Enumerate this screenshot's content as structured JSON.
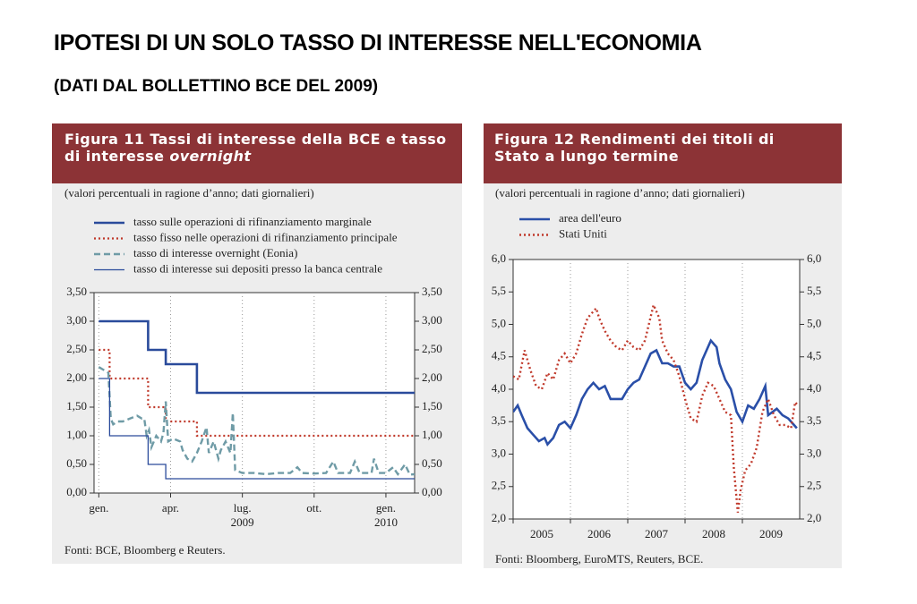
{
  "header": {
    "title": "IPOTESI DI UN SOLO TASSO DI INTERESSE NELL'ECONOMIA",
    "subtitle": "(DATI DAL BOLLETTINO BCE DEL 2009)"
  },
  "chart_data": [
    {
      "type": "line",
      "title": "Figura 11 Tassi di interesse della BCE e tasso di interesse",
      "title_italic": "overnight",
      "subtitle": "(valori percentuali in ragione d’anno; dati giornalieri)",
      "source": "Fonti: BCE, Bloomberg e Reuters.",
      "xlim": [
        -0.2,
        13.2
      ],
      "ylim": [
        0,
        3.5
      ],
      "xticks": [
        {
          "value": 0,
          "label": "gen."
        },
        {
          "value": 3,
          "label": "apr."
        },
        {
          "value": 6,
          "label": "lug."
        },
        {
          "value": 9,
          "label": "ott."
        },
        {
          "value": 12,
          "label": "gen."
        }
      ],
      "year_labels": [
        {
          "value": 6,
          "label": "2009"
        },
        {
          "value": 12,
          "label": "2010"
        }
      ],
      "yticks": [
        {
          "value": 0,
          "label": "0,00"
        },
        {
          "value": 0.5,
          "label": "0,50"
        },
        {
          "value": 1,
          "label": "1,00"
        },
        {
          "value": 1.5,
          "label": "1,50"
        },
        {
          "value": 2,
          "label": "2,00"
        },
        {
          "value": 2.5,
          "label": "2,50"
        },
        {
          "value": 3,
          "label": "3,00"
        },
        {
          "value": 3.5,
          "label": "3,50"
        }
      ],
      "right_axis": true,
      "xtick_labels_centered": false,
      "grid": "x",
      "series": [
        {
          "name": "tasso sulle operazioni di rifinanziamento marginale",
          "color": "#2a4b9b",
          "dash": "solid",
          "width": 2.6,
          "x": [
            0,
            2.06,
            2.06,
            2.8,
            2.8,
            4.1,
            4.1,
            13.2
          ],
          "values": [
            3,
            3,
            2.5,
            2.5,
            2.25,
            2.25,
            1.75,
            1.75
          ]
        },
        {
          "name": "tasso fisso nelle operazioni di rifinanziamento principale",
          "color": "#c0392b",
          "dash": "dotted",
          "width": 2.2,
          "x": [
            0,
            0.45,
            0.45,
            2.06,
            2.06,
            2.8,
            2.8,
            4.1,
            4.1,
            13.2
          ],
          "values": [
            2.5,
            2.5,
            2,
            2,
            1.5,
            1.5,
            1.25,
            1.25,
            1,
            1
          ]
        },
        {
          "name": "tasso di interesse overnight (Eonia)",
          "color": "#6f9ba6",
          "dash": "dashed",
          "width": 2.4,
          "x": [
            0,
            0.2,
            0.4,
            0.5,
            0.6,
            0.8,
            1.0,
            1.3,
            1.6,
            1.8,
            1.9,
            2.0,
            2.1,
            2.2,
            2.4,
            2.6,
            2.7,
            2.8,
            2.9,
            3.1,
            3.4,
            3.5,
            3.7,
            3.9,
            4.1,
            4.3,
            4.5,
            4.6,
            4.8,
            5.0,
            5.1,
            5.3,
            5.5,
            5.6,
            5.7,
            6.0,
            6.5,
            7.0,
            7.5,
            8.0,
            8.3,
            8.5,
            9.0,
            9.5,
            9.8,
            10.0,
            10.5,
            10.7,
            10.9,
            11.4,
            11.5,
            11.7,
            12.0,
            12.3,
            12.5,
            12.8,
            13.0,
            13.2
          ],
          "values": [
            2.2,
            2.15,
            2.1,
            1.3,
            1.2,
            1.25,
            1.25,
            1.3,
            1.35,
            1.3,
            1.3,
            1.0,
            1.1,
            0.8,
            1.0,
            0.9,
            1.05,
            1.6,
            0.9,
            0.95,
            0.9,
            0.75,
            0.6,
            0.55,
            0.7,
            0.9,
            1.15,
            0.7,
            0.9,
            0.6,
            0.75,
            0.9,
            0.7,
            1.4,
            0.4,
            0.35,
            0.35,
            0.33,
            0.35,
            0.35,
            0.45,
            0.35,
            0.34,
            0.35,
            0.55,
            0.35,
            0.35,
            0.55,
            0.35,
            0.35,
            0.6,
            0.35,
            0.35,
            0.45,
            0.33,
            0.5,
            0.32,
            0.33
          ]
        },
        {
          "name": "tasso di interesse sui depositi presso la banca centrale",
          "color": "#2a4b9b",
          "dash": "solid",
          "width": 1.3,
          "x": [
            0,
            0.45,
            0.45,
            2.06,
            2.06,
            2.8,
            2.8,
            13.2
          ],
          "values": [
            2,
            2,
            1,
            1,
            0.5,
            0.5,
            0.25,
            0.25
          ]
        }
      ]
    },
    {
      "type": "line",
      "title": "Figura 12 Rendimenti dei titoli di Stato a lungo termine",
      "subtitle": "(valori percentuali in ragione d’anno; dati giornalieri)",
      "source": "Fonti: Bloomberg, EuroMTS, Reuters, BCE.",
      "xlim": [
        2005,
        2010
      ],
      "ylim": [
        2,
        6
      ],
      "xticks": [
        {
          "value": 2005,
          "label": "2005"
        },
        {
          "value": 2006,
          "label": "2006"
        },
        {
          "value": 2007,
          "label": "2007"
        },
        {
          "value": 2008,
          "label": "2008"
        },
        {
          "value": 2009,
          "label": "2009"
        }
      ],
      "yticks": [
        {
          "value": 2,
          "label": "2,0"
        },
        {
          "value": 2.5,
          "label": "2,5"
        },
        {
          "value": 3,
          "label": "3,0"
        },
        {
          "value": 3.5,
          "label": "3,5"
        },
        {
          "value": 4,
          "label": "4,0"
        },
        {
          "value": 4.5,
          "label": "4,5"
        },
        {
          "value": 5,
          "label": "5,0"
        },
        {
          "value": 5.5,
          "label": "5,5"
        },
        {
          "value": 6,
          "label": "6,0"
        }
      ],
      "right_axis": true,
      "xtick_labels_centered": true,
      "grid": "x",
      "series": [
        {
          "name": "area dell'euro",
          "color": "#2a4fa8",
          "dash": "solid",
          "width": 2.6,
          "x": [
            2005.0,
            2005.08,
            2005.15,
            2005.25,
            2005.35,
            2005.45,
            2005.55,
            2005.6,
            2005.7,
            2005.8,
            2005.9,
            2006.0,
            2006.1,
            2006.2,
            2006.3,
            2006.4,
            2006.5,
            2006.6,
            2006.7,
            2006.8,
            2006.9,
            2007.0,
            2007.1,
            2007.2,
            2007.3,
            2007.4,
            2007.5,
            2007.6,
            2007.7,
            2007.8,
            2007.9,
            2008.0,
            2008.1,
            2008.2,
            2008.3,
            2008.45,
            2008.55,
            2008.6,
            2008.7,
            2008.8,
            2008.9,
            2009.0,
            2009.1,
            2009.2,
            2009.3,
            2009.4,
            2009.45,
            2009.6,
            2009.7,
            2009.8,
            2009.9,
            2009.95
          ],
          "values": [
            3.65,
            3.75,
            3.6,
            3.4,
            3.3,
            3.2,
            3.25,
            3.15,
            3.25,
            3.45,
            3.5,
            3.4,
            3.6,
            3.85,
            4.0,
            4.1,
            4.0,
            4.05,
            3.85,
            3.85,
            3.85,
            4.0,
            4.1,
            4.15,
            4.35,
            4.55,
            4.6,
            4.4,
            4.4,
            4.35,
            4.35,
            4.1,
            4.0,
            4.1,
            4.45,
            4.75,
            4.65,
            4.4,
            4.15,
            4.0,
            3.65,
            3.5,
            3.75,
            3.7,
            3.85,
            4.05,
            3.6,
            3.7,
            3.6,
            3.55,
            3.45,
            3.4
          ]
        },
        {
          "name": "Stati Uniti",
          "color": "#c0392b",
          "dash": "dotted",
          "width": 2.4,
          "x": [
            2005.0,
            2005.1,
            2005.2,
            2005.3,
            2005.4,
            2005.5,
            2005.6,
            2005.7,
            2005.8,
            2005.9,
            2006.0,
            2006.1,
            2006.2,
            2006.3,
            2006.45,
            2006.5,
            2006.6,
            2006.7,
            2006.8,
            2006.9,
            2007.0,
            2007.1,
            2007.2,
            2007.3,
            2007.45,
            2007.55,
            2007.6,
            2007.7,
            2007.8,
            2007.9,
            2008.0,
            2008.1,
            2008.2,
            2008.3,
            2008.4,
            2008.5,
            2008.6,
            2008.7,
            2008.8,
            2008.85,
            2008.92,
            2008.97,
            2009.05,
            2009.15,
            2009.25,
            2009.35,
            2009.45,
            2009.55,
            2009.65,
            2009.75,
            2009.85,
            2009.92,
            2009.97
          ],
          "values": [
            4.2,
            4.15,
            4.6,
            4.3,
            4.05,
            4.0,
            4.25,
            4.15,
            4.45,
            4.55,
            4.4,
            4.55,
            4.85,
            5.1,
            5.25,
            5.1,
            4.9,
            4.75,
            4.65,
            4.6,
            4.75,
            4.65,
            4.6,
            4.75,
            5.3,
            5.1,
            4.75,
            4.55,
            4.45,
            4.2,
            3.85,
            3.55,
            3.5,
            3.9,
            4.1,
            4.05,
            3.85,
            3.65,
            3.6,
            2.8,
            2.1,
            2.45,
            2.75,
            2.85,
            3.1,
            3.65,
            3.85,
            3.6,
            3.45,
            3.45,
            3.4,
            3.8,
            3.75
          ]
        }
      ]
    }
  ]
}
